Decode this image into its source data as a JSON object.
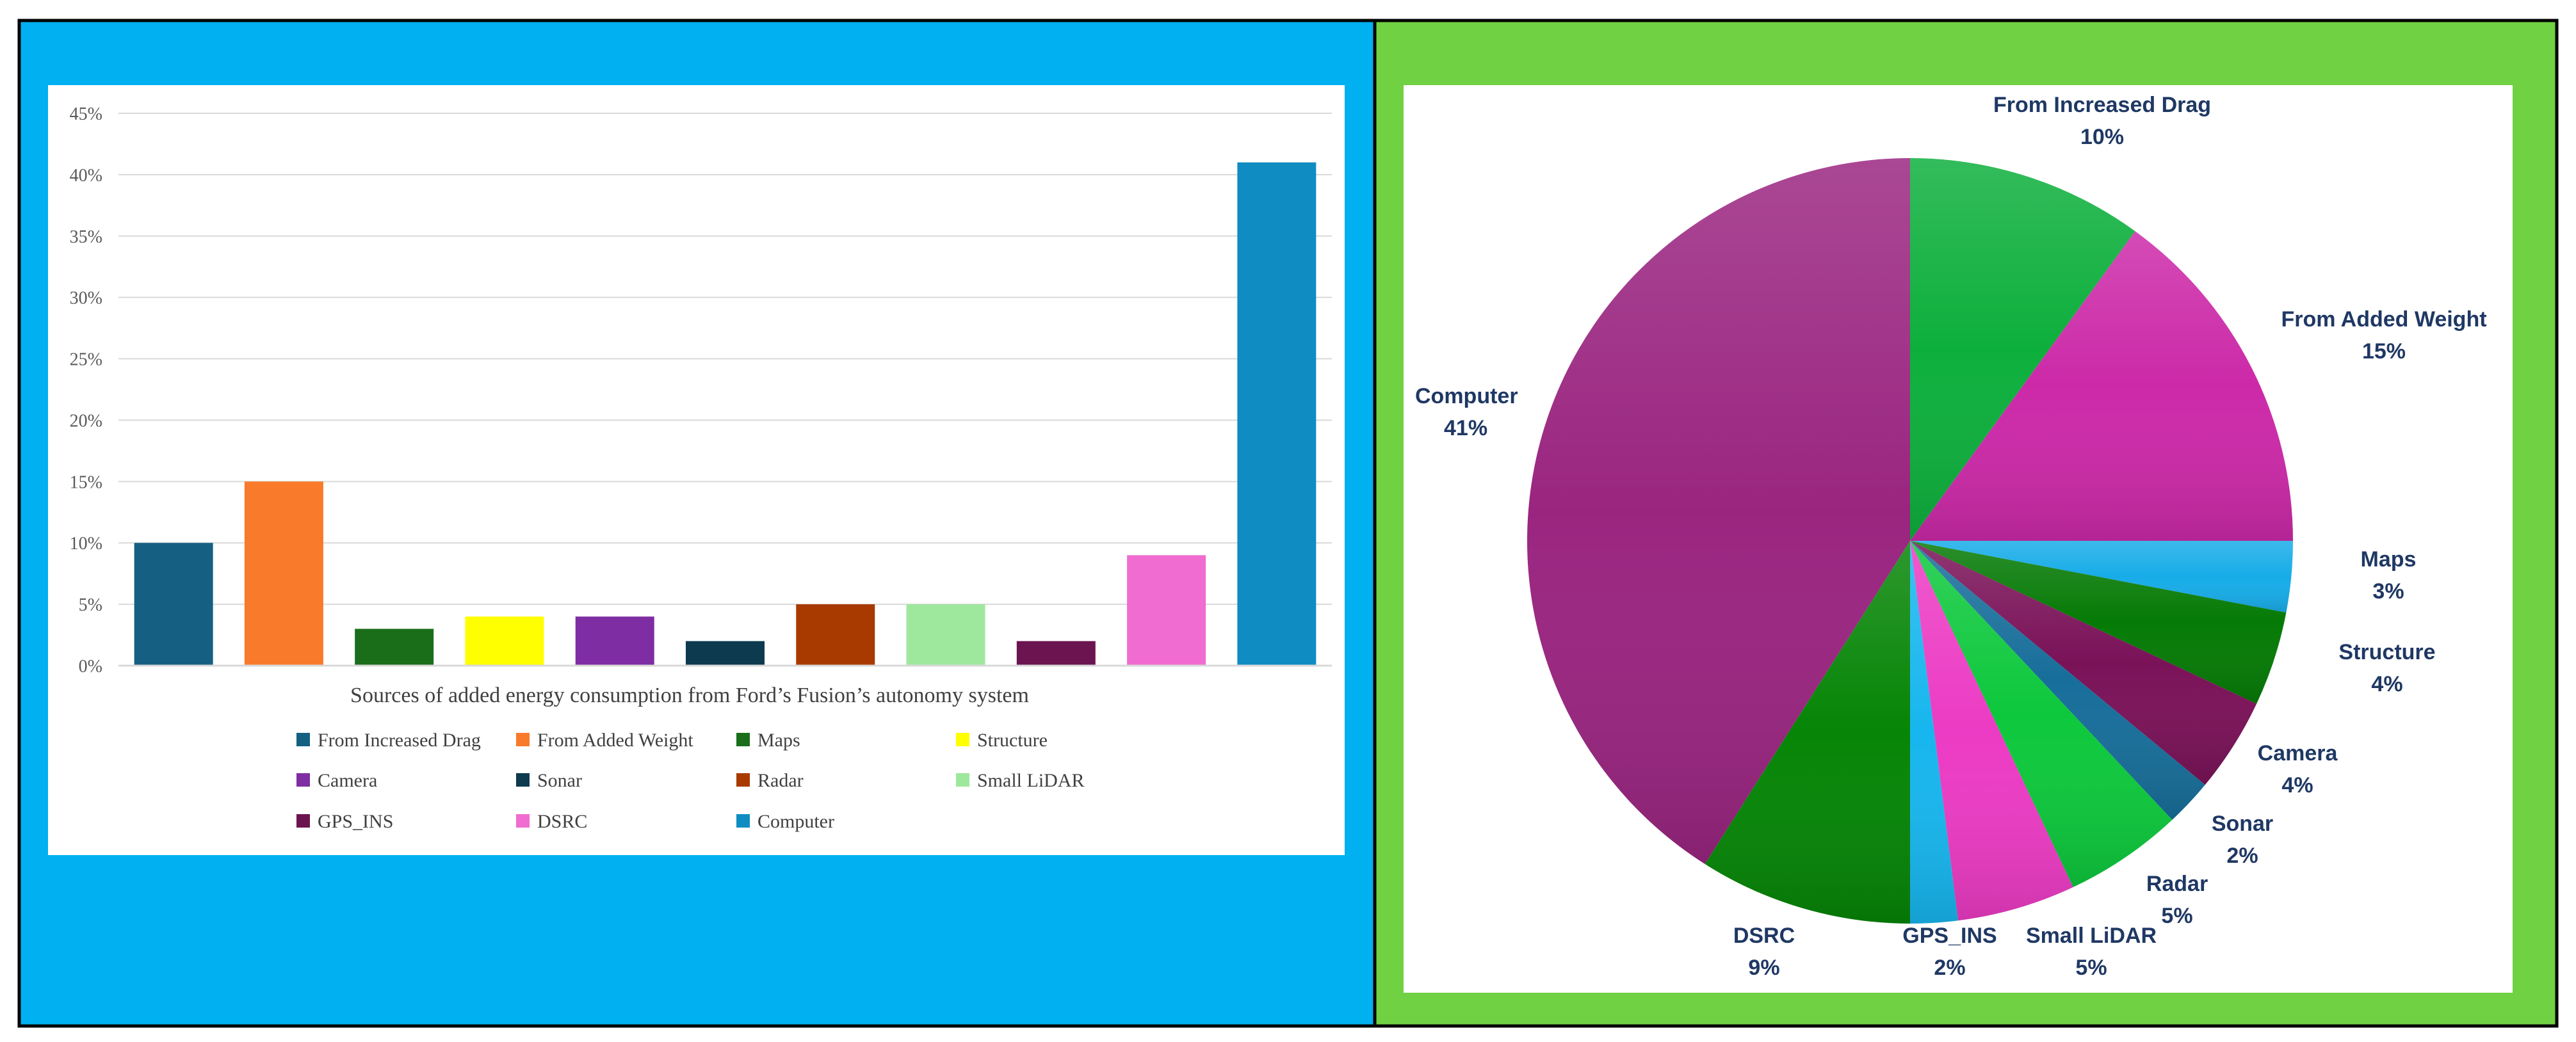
{
  "panels": {
    "left_background": "#00B0F0",
    "right_background": "#70D142",
    "border": "#000000"
  },
  "chart_data": [
    {
      "type": "bar",
      "title": "Sources of added energy consumption from Ford’s Fusion’s autonomy system",
      "xlabel": "",
      "ylabel": "",
      "ylim": [
        0,
        45
      ],
      "y_ticks": [
        "0%",
        "5%",
        "10%",
        "15%",
        "20%",
        "25%",
        "30%",
        "35%",
        "40%",
        "45%"
      ],
      "grid": true,
      "legend_position": "bottom",
      "categories": [
        "From Increased Drag",
        "From Added Weight",
        "Maps",
        "Structure",
        "Camera",
        "Sonar",
        "Radar",
        "Small LiDAR",
        "GPS_INS",
        "DSRC",
        "Computer"
      ],
      "values": [
        10,
        15,
        3,
        4,
        4,
        2,
        5,
        5,
        2,
        9,
        41
      ],
      "colors": [
        "#156082",
        "#F97A2A",
        "#1A6E1A",
        "#FFFF00",
        "#7F2DA3",
        "#0D3A4F",
        "#A83A00",
        "#9EE89E",
        "#6B1450",
        "#F06CD0",
        "#0F8DC2"
      ]
    },
    {
      "type": "pie",
      "title": "",
      "legend_position": "none",
      "start": "top",
      "direction": "clockwise",
      "slices": [
        {
          "label": "From Increased Drag",
          "value": 10,
          "pct": "10%",
          "color": "#0DAF3C"
        },
        {
          "label": "From Added Weight",
          "value": 15,
          "pct": "15%",
          "color": "#CC29A8"
        },
        {
          "label": "Maps",
          "value": 3,
          "pct": "3%",
          "color": "#17ACE8"
        },
        {
          "label": "Structure",
          "value": 4,
          "pct": "4%",
          "color": "#057A05"
        },
        {
          "label": "Camera",
          "value": 4,
          "pct": "4%",
          "color": "#7A1258"
        },
        {
          "label": "Sonar",
          "value": 2,
          "pct": "2%",
          "color": "#176E9A"
        },
        {
          "label": "Radar",
          "value": 5,
          "pct": "5%",
          "color": "#0DC83C"
        },
        {
          "label": "Small LiDAR",
          "value": 5,
          "pct": "5%",
          "color": "#EC3BC4"
        },
        {
          "label": "GPS_INS",
          "value": 2,
          "pct": "2%",
          "color": "#17B6EE"
        },
        {
          "label": "DSRC",
          "value": 9,
          "pct": "9%",
          "color": "#068506"
        },
        {
          "label": "Computer",
          "value": 41,
          "pct": "41%",
          "color": "#9A2580"
        }
      ]
    }
  ]
}
